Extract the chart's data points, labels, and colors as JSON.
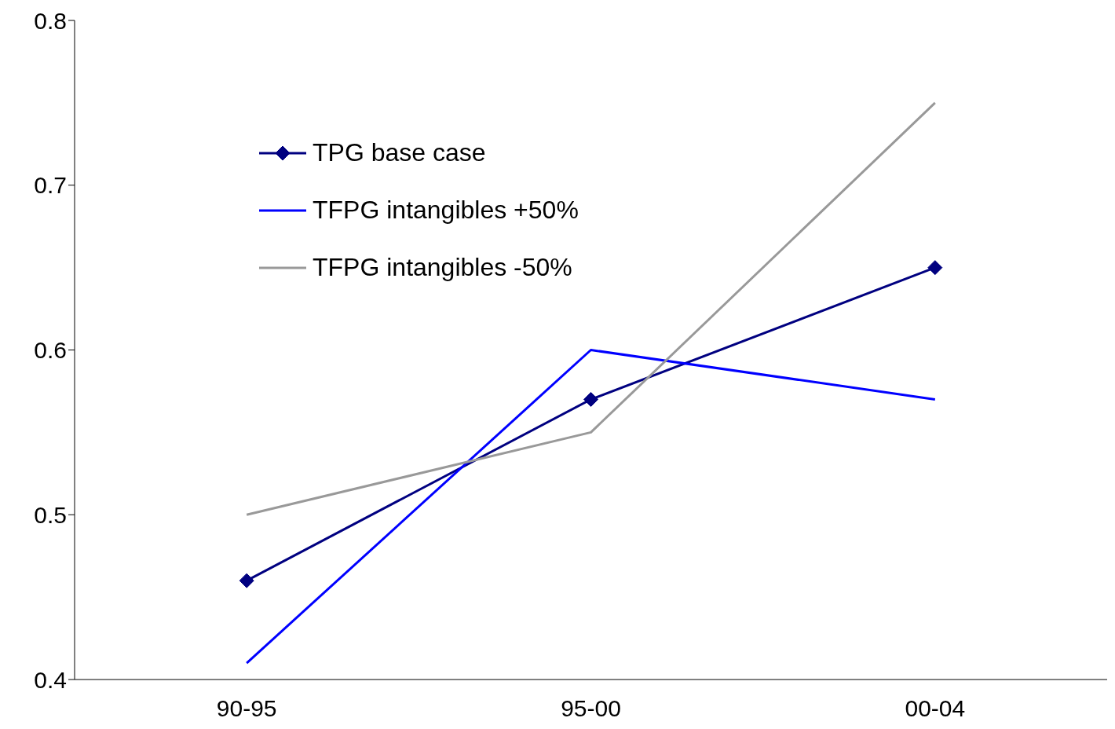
{
  "chart_data": {
    "type": "line",
    "categories": [
      "90-95",
      "95-00",
      "00-04"
    ],
    "series": [
      {
        "name": "TPG base case",
        "color": "#000080",
        "values": [
          0.46,
          0.57,
          0.65
        ],
        "marker": "diamond"
      },
      {
        "name": "TFPG  intangibles +50%",
        "color": "#0000ff",
        "values": [
          0.41,
          0.6,
          0.57
        ],
        "marker": "none"
      },
      {
        "name": "TFPG  intangibles -50%",
        "color": "#999999",
        "values": [
          0.5,
          0.55,
          0.75
        ],
        "marker": "none"
      }
    ],
    "ylim": [
      0.4,
      0.8
    ],
    "yticks": [
      {
        "value": 0.4,
        "label": "0.4"
      },
      {
        "value": 0.5,
        "label": "0.5"
      },
      {
        "value": 0.6,
        "label": "0.6"
      },
      {
        "value": 0.7,
        "label": "0.7"
      },
      {
        "value": 0.8,
        "label": "0.8"
      }
    ],
    "grid": false,
    "legend": "top left",
    "line_style": "solid"
  }
}
